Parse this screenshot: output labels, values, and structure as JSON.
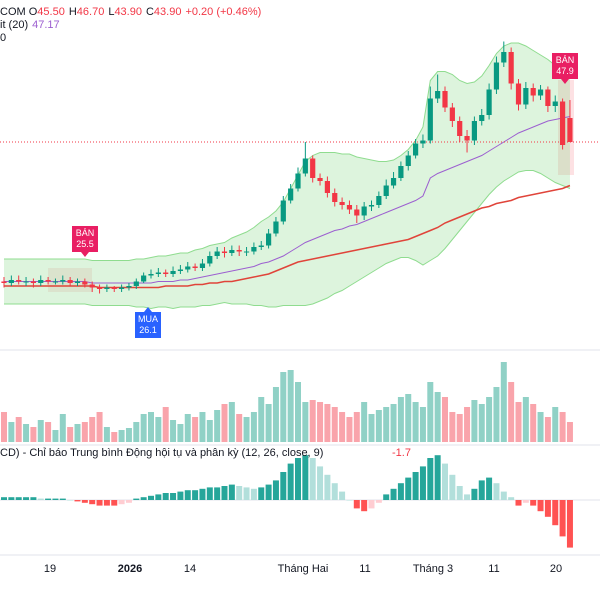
{
  "chart_data": {
    "type": "candlestick",
    "header": {
      "symbol": "COM",
      "ohlc": [
        {
          "label": "O",
          "value": "45.50"
        },
        {
          "label": "H",
          "value": "46.70"
        },
        {
          "label": "L",
          "value": "43.90"
        },
        {
          "label": "C",
          "value": "43.90"
        }
      ],
      "change": "+0.20 (+0.46%)",
      "indicator_label": "it (20)",
      "indicator_value": "47.17",
      "indicator2_label": "0"
    },
    "up_color": "#089981",
    "down_color": "#f23645",
    "basis_color": "#9c5fd0",
    "band_color": "#8fdc8f",
    "ma_color": "#e0443a",
    "open": [
      34.6,
      34.5,
      34.7,
      34.6,
      34.6,
      34.5,
      34.7,
      34.6,
      34.6,
      34.7,
      34.5,
      34.6,
      34.4,
      34.2,
      34.1,
      34.2,
      34.1,
      34.2,
      34.3,
      34.6,
      35.0,
      35.1,
      35.2,
      35.1,
      35.3,
      35.4,
      35.6,
      35.5,
      35.8,
      36.3,
      36.6,
      36.5,
      36.7,
      36.6,
      36.6,
      36.9,
      37.0,
      37.8,
      38.6,
      40.0,
      40.8,
      41.8,
      42.8,
      41.5,
      41.3,
      40.5,
      39.9,
      39.7,
      39.4,
      39.0,
      39.6,
      39.7,
      40.3,
      41.0,
      41.5,
      42.3,
      43.0,
      43.8,
      44.0,
      46.8,
      47.3,
      46.2,
      45.3,
      44.3,
      44.0,
      45.3,
      45.7,
      47.4,
      49.2,
      49.9,
      47.8,
      46.4,
      47.5,
      47.0,
      47.4,
      46.3,
      46.6,
      45.5
    ],
    "high": [
      34.9,
      35.0,
      35.0,
      34.9,
      34.8,
      35.0,
      34.9,
      34.8,
      35.0,
      34.9,
      34.8,
      34.8,
      34.6,
      34.4,
      34.4,
      34.3,
      34.4,
      34.5,
      34.8,
      35.2,
      35.4,
      35.5,
      35.4,
      35.6,
      35.7,
      35.9,
      35.8,
      36.1,
      36.6,
      36.9,
      36.9,
      37.0,
      37.0,
      36.9,
      37.2,
      37.3,
      38.1,
      38.9,
      40.3,
      41.1,
      42.2,
      43.9,
      43.0,
      41.8,
      41.6,
      40.8,
      40.2,
      40.0,
      39.7,
      39.9,
      40.0,
      40.6,
      41.4,
      41.9,
      42.6,
      43.3,
      44.1,
      44.4,
      47.6,
      48.4,
      47.6,
      46.5,
      45.6,
      44.7,
      45.6,
      46.1,
      47.8,
      49.6,
      50.6,
      50.2,
      48.1,
      47.9,
      47.8,
      47.7,
      47.6,
      47.0,
      46.8,
      46.7
    ],
    "low": [
      34.2,
      34.3,
      34.4,
      34.3,
      34.2,
      34.3,
      34.4,
      34.4,
      34.4,
      34.3,
      34.3,
      34.2,
      33.9,
      33.8,
      33.9,
      33.9,
      33.9,
      34.0,
      34.1,
      34.5,
      34.8,
      34.9,
      34.9,
      34.9,
      35.1,
      35.2,
      35.3,
      35.3,
      35.6,
      36.1,
      36.2,
      36.3,
      36.3,
      36.3,
      36.4,
      36.7,
      36.8,
      37.6,
      38.4,
      39.8,
      40.6,
      41.6,
      41.2,
      41.0,
      40.2,
      39.6,
      39.4,
      39.1,
      38.5,
      38.7,
      39.3,
      39.5,
      40.1,
      40.8,
      41.3,
      42.0,
      42.8,
      43.5,
      43.8,
      46.5,
      45.9,
      44.9,
      43.9,
      43.2,
      43.7,
      45.0,
      45.4,
      47.1,
      48.9,
      47.4,
      46.0,
      46.1,
      46.6,
      46.7,
      45.9,
      45.9,
      43.4,
      43.9
    ],
    "close": [
      34.5,
      34.7,
      34.6,
      34.6,
      34.5,
      34.7,
      34.6,
      34.6,
      34.7,
      34.5,
      34.6,
      34.4,
      34.2,
      34.1,
      34.2,
      34.1,
      34.2,
      34.3,
      34.6,
      35.0,
      35.1,
      35.2,
      35.1,
      35.3,
      35.4,
      35.6,
      35.5,
      35.8,
      36.3,
      36.6,
      36.5,
      36.7,
      36.6,
      36.6,
      36.9,
      37.0,
      37.8,
      38.6,
      40.0,
      40.8,
      41.8,
      42.8,
      41.5,
      41.3,
      40.5,
      39.9,
      39.7,
      39.4,
      39.0,
      39.6,
      39.7,
      40.3,
      41.0,
      41.5,
      42.3,
      43.0,
      43.8,
      44.0,
      46.8,
      47.3,
      46.2,
      45.3,
      44.3,
      44.0,
      45.3,
      45.7,
      47.4,
      49.2,
      49.9,
      47.8,
      46.4,
      47.5,
      47.0,
      47.4,
      46.3,
      46.6,
      43.7,
      43.9
    ],
    "bands": {
      "upper": [
        36.1,
        36.1,
        36.1,
        36.1,
        36.1,
        36.1,
        36.1,
        36.1,
        36.1,
        36.1,
        36.1,
        36.1,
        36.0,
        36.0,
        36.0,
        36.0,
        36.0,
        36.0,
        36.1,
        36.1,
        36.2,
        36.3,
        36.3,
        36.4,
        36.5,
        36.5,
        36.7,
        36.8,
        37.0,
        37.1,
        37.2,
        37.5,
        37.7,
        37.9,
        38.2,
        38.6,
        38.9,
        39.3,
        39.9,
        40.8,
        41.7,
        42.6,
        43.0,
        43.2,
        43.2,
        43.2,
        43.1,
        43.1,
        42.9,
        42.8,
        42.7,
        42.6,
        42.6,
        42.7,
        43.0,
        43.4,
        44.0,
        44.9,
        48.0,
        48.6,
        48.6,
        48.4,
        48.0,
        47.8,
        47.9,
        48.3,
        49.0,
        49.8,
        50.3,
        50.5,
        50.5,
        50.3,
        50.0,
        49.7,
        49.4,
        49.0,
        48.6,
        48.2
      ],
      "basis": [
        34.6,
        34.6,
        34.6,
        34.6,
        34.6,
        34.6,
        34.6,
        34.6,
        34.6,
        34.6,
        34.6,
        34.6,
        34.5,
        34.5,
        34.5,
        34.5,
        34.5,
        34.5,
        34.5,
        34.5,
        34.5,
        34.6,
        34.6,
        34.6,
        34.7,
        34.7,
        34.8,
        34.9,
        35.0,
        35.1,
        35.2,
        35.3,
        35.4,
        35.5,
        35.6,
        35.8,
        35.9,
        36.1,
        36.3,
        36.6,
        36.9,
        37.2,
        37.4,
        37.6,
        37.8,
        38.0,
        38.1,
        38.3,
        38.4,
        38.6,
        38.8,
        39.0,
        39.2,
        39.4,
        39.6,
        39.8,
        40.0,
        40.3,
        41.5,
        41.8,
        42.0,
        42.2,
        42.4,
        42.6,
        42.8,
        43.0,
        43.3,
        43.6,
        43.9,
        44.2,
        44.5,
        44.7,
        44.9,
        45.1,
        45.3,
        45.4,
        45.5,
        45.6
      ],
      "lower": [
        33.1,
        33.1,
        33.1,
        33.1,
        33.1,
        33.1,
        33.1,
        33.1,
        33.1,
        33.1,
        33.1,
        33.1,
        33.0,
        33.0,
        33.0,
        33.0,
        33.0,
        33.0,
        32.9,
        32.9,
        32.8,
        32.9,
        32.9,
        32.8,
        32.9,
        32.9,
        32.9,
        33.0,
        33.0,
        33.1,
        33.2,
        33.1,
        33.1,
        33.1,
        33.0,
        33.0,
        32.9,
        32.9,
        33.0,
        33.0,
        33.0,
        33.0,
        33.1,
        33.3,
        33.5,
        33.8,
        34.0,
        34.3,
        34.6,
        34.9,
        35.2,
        35.5,
        35.8,
        36.0,
        36.2,
        36.2,
        36.0,
        35.7,
        36.0,
        36.3,
        36.8,
        37.4,
        38.0,
        38.6,
        39.2,
        39.8,
        40.4,
        40.9,
        41.3,
        41.6,
        41.9,
        42.0,
        42.0,
        41.8,
        41.5,
        41.2,
        41.0,
        40.8
      ]
    },
    "ma": [
      34.3,
      34.3,
      34.3,
      34.3,
      34.3,
      34.3,
      34.3,
      34.3,
      34.3,
      34.3,
      34.3,
      34.3,
      34.3,
      34.2,
      34.2,
      34.2,
      34.2,
      34.2,
      34.2,
      34.2,
      34.2,
      34.2,
      34.3,
      34.3,
      34.3,
      34.3,
      34.4,
      34.4,
      34.5,
      34.5,
      34.6,
      34.6,
      34.7,
      34.8,
      34.9,
      35.0,
      35.1,
      35.3,
      35.5,
      35.7,
      35.9,
      36.0,
      36.1,
      36.2,
      36.3,
      36.4,
      36.5,
      36.6,
      36.7,
      36.8,
      36.9,
      37.0,
      37.1,
      37.2,
      37.3,
      37.4,
      37.6,
      37.8,
      38.0,
      38.2,
      38.5,
      38.7,
      38.9,
      39.1,
      39.3,
      39.5,
      39.6,
      39.8,
      39.9,
      40.0,
      40.2,
      40.3,
      40.4,
      40.5,
      40.6,
      40.7,
      40.8,
      41.0
    ],
    "volume": [
      30,
      20,
      25,
      18,
      15,
      22,
      20,
      12,
      28,
      15,
      18,
      20,
      25,
      30,
      15,
      10,
      12,
      14,
      20,
      28,
      30,
      25,
      35,
      22,
      18,
      28,
      25,
      30,
      22,
      32,
      38,
      40,
      28,
      25,
      30,
      45,
      38,
      55,
      70,
      72,
      60,
      40,
      42,
      40,
      38,
      35,
      30,
      25,
      30,
      40,
      28,
      32,
      35,
      38,
      45,
      48,
      40,
      35,
      60,
      50,
      45,
      30,
      28,
      35,
      42,
      38,
      45,
      55,
      80,
      60,
      40,
      45,
      38,
      30,
      25,
      35,
      30,
      20
    ],
    "macd": {
      "label": "CD) - Chỉ báo Trung bình Động hội tụ và phân kỳ (12, 26, close, 9)",
      "values": [
        0.1,
        0.1,
        0.1,
        0.1,
        0.1,
        0.05,
        0.05,
        0.05,
        0.05,
        0.0,
        -0.05,
        -0.1,
        -0.15,
        -0.2,
        -0.2,
        -0.2,
        -0.15,
        -0.1,
        0.05,
        0.1,
        0.15,
        0.2,
        0.25,
        0.25,
        0.3,
        0.35,
        0.35,
        0.4,
        0.45,
        0.45,
        0.5,
        0.55,
        0.5,
        0.45,
        0.4,
        0.45,
        0.55,
        0.7,
        1.0,
        1.3,
        1.5,
        1.6,
        1.5,
        1.2,
        0.9,
        0.6,
        0.3,
        0.0,
        -0.3,
        -0.4,
        -0.3,
        -0.1,
        0.2,
        0.4,
        0.6,
        0.8,
        1.0,
        1.2,
        1.5,
        1.6,
        1.3,
        0.9,
        0.5,
        0.2,
        0.4,
        0.7,
        0.8,
        0.6,
        0.3,
        0.1,
        -0.2,
        -0.1,
        -0.2,
        -0.4,
        -0.6,
        -0.9,
        -1.3,
        -1.7
      ]
    },
    "signals": [
      {
        "label": "BÁN",
        "value": 25.5
      },
      {
        "label": "MUA",
        "value": 26.1
      },
      {
        "label": "BÁN",
        "value": 47.9
      }
    ],
    "x_labels": [
      "19",
      "2026",
      "14",
      "Tháng Hai",
      "11",
      "Tháng 3",
      "11",
      "20"
    ]
  }
}
